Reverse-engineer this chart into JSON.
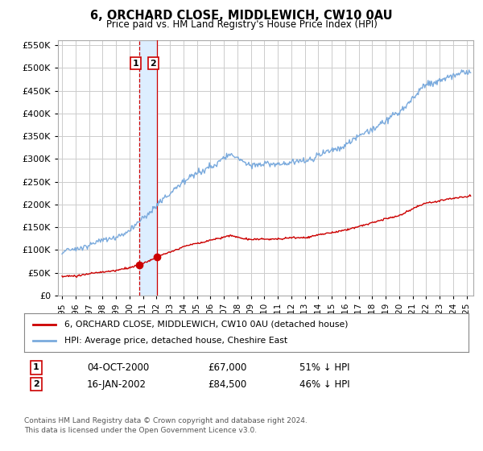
{
  "title": "6, ORCHARD CLOSE, MIDDLEWICH, CW10 0AU",
  "subtitle": "Price paid vs. HM Land Registry's House Price Index (HPI)",
  "red_label": "6, ORCHARD CLOSE, MIDDLEWICH, CW10 0AU (detached house)",
  "blue_label": "HPI: Average price, detached house, Cheshire East",
  "footnote": "Contains HM Land Registry data © Crown copyright and database right 2024.\nThis data is licensed under the Open Government Licence v3.0.",
  "sale1_date": "04-OCT-2000",
  "sale1_price": "£67,000",
  "sale1_hpi": "51% ↓ HPI",
  "sale1_x": 2000.75,
  "sale1_y": 67000,
  "sale2_date": "16-JAN-2002",
  "sale2_price": "£84,500",
  "sale2_hpi": "46% ↓ HPI",
  "sale2_x": 2002.04,
  "sale2_y": 84500,
  "vline1_x": 2000.75,
  "vline2_x": 2002.04,
  "ylim": [
    0,
    560000
  ],
  "xlim_start": 1994.7,
  "xlim_end": 2025.5,
  "yticks": [
    0,
    50000,
    100000,
    150000,
    200000,
    250000,
    300000,
    350000,
    400000,
    450000,
    500000,
    550000
  ],
  "xticks": [
    1995,
    1996,
    1997,
    1998,
    1999,
    2000,
    2001,
    2002,
    2003,
    2004,
    2005,
    2006,
    2007,
    2008,
    2009,
    2010,
    2011,
    2012,
    2013,
    2014,
    2015,
    2016,
    2017,
    2018,
    2019,
    2020,
    2021,
    2022,
    2023,
    2024,
    2025
  ],
  "background_color": "#ffffff",
  "plot_bg_color": "#ffffff",
  "grid_color": "#cccccc",
  "red_color": "#cc0000",
  "blue_color": "#7aaadd",
  "shade_color": "#ddeeff",
  "vline_color": "#cc0000"
}
